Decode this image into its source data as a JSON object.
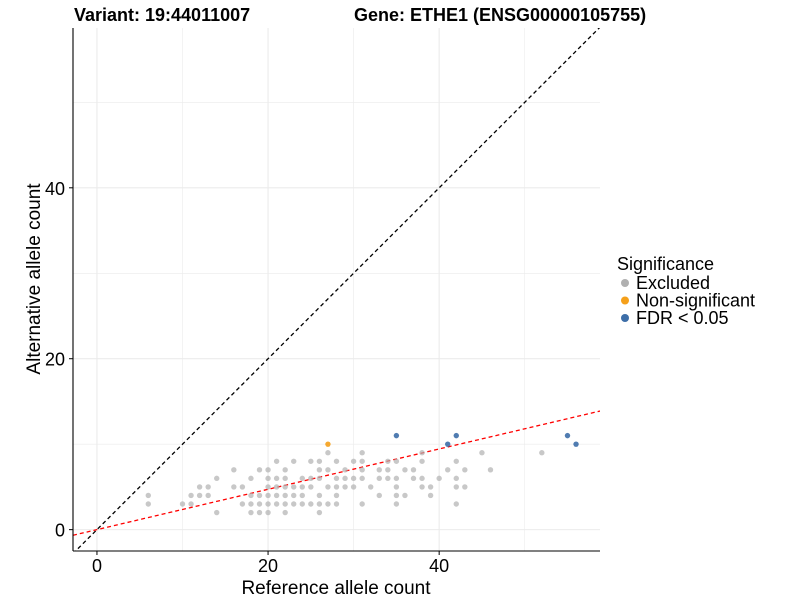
{
  "chart_data": {
    "type": "scatter",
    "title_left": "Variant: 19:44011007",
    "title_right": "Gene: ETHE1 (ENSG00000105755)",
    "xlabel": "Reference allele count",
    "ylabel": "Alternative allele count",
    "xlim": [
      -2.8,
      58.8
    ],
    "ylim": [
      -2.5,
      58.7
    ],
    "xticks": [
      0,
      20,
      40
    ],
    "yticks": [
      0,
      20,
      40
    ],
    "grid": true,
    "legend": {
      "title": "Significance",
      "position": "right",
      "entries": [
        {
          "label": "Excluded",
          "color": "#b0b0b0"
        },
        {
          "label": "Non-significant",
          "color": "#f5a01a"
        },
        {
          "label": "FDR < 0.05",
          "color": "#3d6ea8"
        }
      ]
    },
    "reference_lines": [
      {
        "name": "identity",
        "slope": 1,
        "intercept": 0,
        "color": "#000000",
        "style": "dashed"
      },
      {
        "name": "fit",
        "slope": 0.236,
        "intercept": 0,
        "color": "#ff0000",
        "style": "dashed"
      }
    ],
    "series": [
      {
        "name": "Excluded",
        "points": [
          [
            6,
            4
          ],
          [
            6,
            3
          ],
          [
            10,
            3
          ],
          [
            11,
            4
          ],
          [
            11,
            3
          ],
          [
            12,
            5
          ],
          [
            12,
            4
          ],
          [
            13,
            5
          ],
          [
            13,
            4
          ],
          [
            14,
            6
          ],
          [
            14,
            2
          ],
          [
            16,
            7
          ],
          [
            16,
            5
          ],
          [
            17,
            5
          ],
          [
            17,
            3
          ],
          [
            18,
            6
          ],
          [
            18,
            4
          ],
          [
            18,
            3
          ],
          [
            18,
            2
          ],
          [
            19,
            7
          ],
          [
            19,
            4
          ],
          [
            19,
            3
          ],
          [
            19,
            2
          ],
          [
            20,
            7
          ],
          [
            20,
            6
          ],
          [
            20,
            5
          ],
          [
            20,
            4
          ],
          [
            20,
            3
          ],
          [
            20,
            2
          ],
          [
            21,
            8
          ],
          [
            21,
            6
          ],
          [
            21,
            5
          ],
          [
            21,
            4
          ],
          [
            21,
            3
          ],
          [
            22,
            7
          ],
          [
            22,
            6
          ],
          [
            22,
            5
          ],
          [
            22,
            4
          ],
          [
            22,
            3
          ],
          [
            22,
            2
          ],
          [
            23,
            8
          ],
          [
            23,
            5
          ],
          [
            23,
            4
          ],
          [
            23,
            3
          ],
          [
            24,
            6
          ],
          [
            24,
            5
          ],
          [
            24,
            4
          ],
          [
            24,
            3
          ],
          [
            25,
            8
          ],
          [
            25,
            6
          ],
          [
            25,
            5
          ],
          [
            25,
            3
          ],
          [
            26,
            8
          ],
          [
            26,
            7
          ],
          [
            26,
            6
          ],
          [
            26,
            4
          ],
          [
            26,
            3
          ],
          [
            26,
            2
          ],
          [
            27,
            9
          ],
          [
            27,
            7
          ],
          [
            27,
            5
          ],
          [
            27,
            3
          ],
          [
            28,
            8
          ],
          [
            28,
            6
          ],
          [
            28,
            5
          ],
          [
            28,
            4
          ],
          [
            28,
            3
          ],
          [
            29,
            7
          ],
          [
            29,
            6
          ],
          [
            29,
            5
          ],
          [
            30,
            8
          ],
          [
            30,
            6
          ],
          [
            30,
            5
          ],
          [
            31,
            9
          ],
          [
            31,
            8
          ],
          [
            31,
            7
          ],
          [
            31,
            6
          ],
          [
            31,
            3
          ],
          [
            32,
            5
          ],
          [
            33,
            7
          ],
          [
            33,
            6
          ],
          [
            33,
            4
          ],
          [
            34,
            8
          ],
          [
            34,
            7
          ],
          [
            34,
            6
          ],
          [
            35,
            8
          ],
          [
            35,
            6
          ],
          [
            35,
            5
          ],
          [
            35,
            4
          ],
          [
            35,
            3
          ],
          [
            36,
            7
          ],
          [
            36,
            4
          ],
          [
            37,
            7
          ],
          [
            37,
            6
          ],
          [
            38,
            9
          ],
          [
            38,
            8
          ],
          [
            38,
            6
          ],
          [
            38,
            5
          ],
          [
            39,
            5
          ],
          [
            39,
            4
          ],
          [
            40,
            6
          ],
          [
            41,
            7
          ],
          [
            42,
            8
          ],
          [
            42,
            6
          ],
          [
            42,
            5
          ],
          [
            42,
            3
          ],
          [
            43,
            7
          ],
          [
            43,
            5
          ],
          [
            45,
            9
          ],
          [
            46,
            7
          ],
          [
            52,
            9
          ]
        ]
      },
      {
        "name": "Non-significant",
        "points": [
          [
            27,
            10
          ]
        ]
      },
      {
        "name": "FDR < 0.05",
        "points": [
          [
            35,
            11
          ],
          [
            41,
            10
          ],
          [
            42,
            11
          ],
          [
            55,
            11
          ],
          [
            56,
            10
          ]
        ]
      }
    ]
  }
}
